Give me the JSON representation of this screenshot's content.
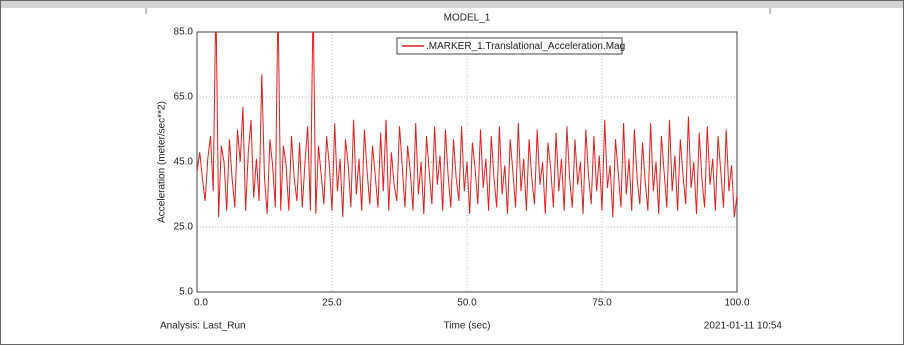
{
  "chart_data": {
    "type": "line",
    "title": "MODEL_1",
    "xlabel": "Time (sec)",
    "ylabel": "Acceleration (meter/sec**2)",
    "footer_left": "Analysis:  Last_Run",
    "footer_right": "2021-01-11 10:54",
    "xlim": [
      0,
      100
    ],
    "ylim": [
      5,
      85
    ],
    "xticks": [
      {
        "value": 0,
        "label": "0.0"
      },
      {
        "value": 25,
        "label": "25.0"
      },
      {
        "value": 50,
        "label": "50.0"
      },
      {
        "value": 75,
        "label": "75.0"
      },
      {
        "value": 100,
        "label": "100.0"
      }
    ],
    "yticks": [
      {
        "value": 5,
        "label": "5.0"
      },
      {
        "value": 25,
        "label": "25.0"
      },
      {
        "value": 45,
        "label": "45.0"
      },
      {
        "value": 65,
        "label": "65.0"
      },
      {
        "value": 85,
        "label": "85.0"
      }
    ],
    "grid": true,
    "legend": "top",
    "x": [
      0,
      0.5,
      1,
      1.5,
      2,
      2.5,
      3,
      3.5,
      4,
      4.5,
      5,
      5.5,
      6,
      6.5,
      7,
      7.5,
      8,
      8.5,
      9,
      9.5,
      10,
      10.5,
      11,
      11.5,
      12,
      12.5,
      13,
      13.5,
      14,
      14.5,
      15,
      15.5,
      16,
      16.5,
      17,
      17.5,
      18,
      18.5,
      19,
      19.5,
      20,
      20.5,
      21,
      21.5,
      22,
      22.5,
      23,
      23.5,
      24,
      24.5,
      25,
      25.5,
      26,
      26.5,
      27,
      27.5,
      28,
      28.5,
      29,
      29.5,
      30,
      30.5,
      31,
      31.5,
      32,
      32.5,
      33,
      33.5,
      34,
      34.5,
      35,
      35.5,
      36,
      36.5,
      37,
      37.5,
      38,
      38.5,
      39,
      39.5,
      40,
      40.5,
      41,
      41.5,
      42,
      42.5,
      43,
      43.5,
      44,
      44.5,
      45,
      45.5,
      46,
      46.5,
      47,
      47.5,
      48,
      48.5,
      49,
      49.5,
      50,
      50.5,
      51,
      51.5,
      52,
      52.5,
      53,
      53.5,
      54,
      54.5,
      55,
      55.5,
      56,
      56.5,
      57,
      57.5,
      58,
      58.5,
      59,
      59.5,
      60,
      60.5,
      61,
      61.5,
      62,
      62.5,
      63,
      63.5,
      64,
      64.5,
      65,
      65.5,
      66,
      66.5,
      67,
      67.5,
      68,
      68.5,
      69,
      69.5,
      70,
      70.5,
      71,
      71.5,
      72,
      72.5,
      73,
      73.5,
      74,
      74.5,
      75,
      75.5,
      76,
      76.5,
      77,
      77.5,
      78,
      78.5,
      79,
      79.5,
      80,
      80.5,
      81,
      81.5,
      82,
      82.5,
      83,
      83.5,
      84,
      84.5,
      85,
      85.5,
      86,
      86.5,
      87,
      87.5,
      88,
      88.5,
      89,
      89.5,
      90,
      90.5,
      91,
      91.5,
      92,
      92.5,
      93,
      93.5,
      94,
      94.5,
      95,
      95.5,
      96,
      96.5,
      97,
      97.5,
      98,
      98.5,
      99,
      99.5,
      100
    ],
    "series": [
      {
        "name": ".MARKER_1.Translational_Acceleration.Mag",
        "color": "#e02020",
        "values": [
          42,
          48,
          40,
          33,
          46,
          53,
          36,
          95,
          28,
          50,
          45,
          30,
          52,
          40,
          31,
          55,
          45,
          62,
          30,
          48,
          58,
          34,
          46,
          33,
          72,
          40,
          29,
          52,
          44,
          31,
          95,
          30,
          50,
          44,
          30,
          53,
          40,
          33,
          51,
          31,
          45,
          56,
          30,
          95,
          29,
          50,
          41,
          32,
          53,
          44,
          30,
          57,
          36,
          46,
          28,
          52,
          44,
          31,
          58,
          35,
          46,
          30,
          55,
          42,
          32,
          50,
          41,
          31,
          54,
          36,
          58,
          30,
          48,
          38,
          33,
          56,
          44,
          31,
          50,
          42,
          30,
          57,
          35,
          45,
          29,
          53,
          42,
          32,
          56,
          38,
          47,
          30,
          55,
          41,
          31,
          52,
          40,
          33,
          56,
          36,
          45,
          29,
          51,
          43,
          32,
          55,
          37,
          46,
          30,
          53,
          40,
          31,
          56,
          35,
          44,
          29,
          52,
          42,
          31,
          57,
          36,
          46,
          30,
          52,
          40,
          32,
          55,
          38,
          45,
          29,
          51,
          43,
          31,
          54,
          36,
          46,
          30,
          56,
          40,
          31,
          52,
          38,
          45,
          29,
          55,
          41,
          32,
          53,
          36,
          47,
          30,
          58,
          37,
          44,
          28,
          52,
          42,
          31,
          57,
          35,
          46,
          30,
          55,
          40,
          32,
          51,
          39,
          30,
          57,
          36,
          45,
          29,
          53,
          42,
          31,
          58,
          36,
          47,
          30,
          52,
          41,
          32,
          59,
          37,
          45,
          29,
          54,
          40,
          31,
          56,
          38,
          46,
          30,
          53,
          42,
          31,
          55,
          36,
          44,
          28,
          35
        ]
      }
    ]
  }
}
